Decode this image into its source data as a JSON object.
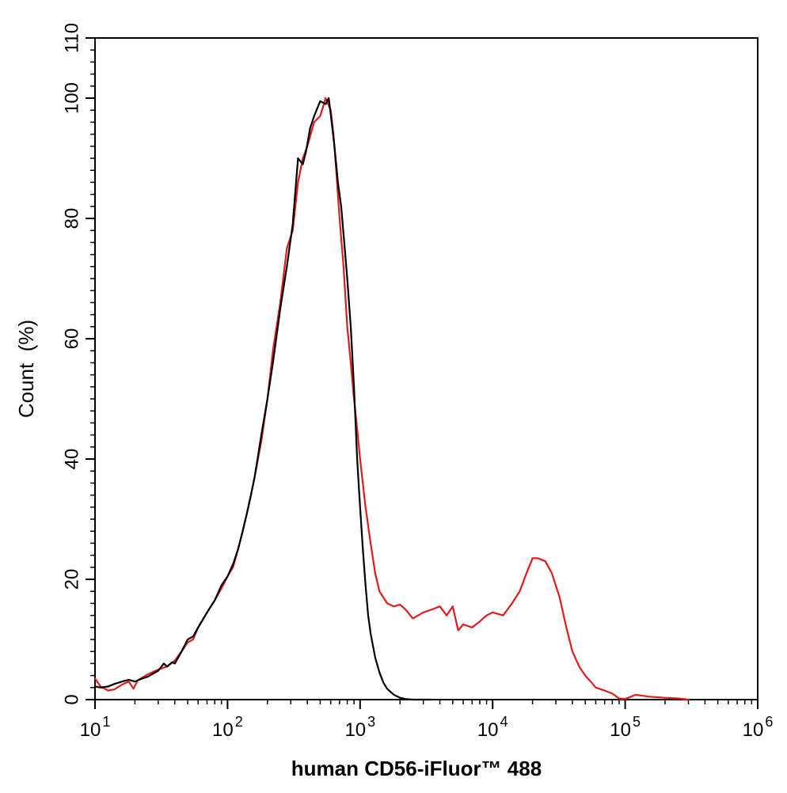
{
  "chart_data": {
    "type": "line",
    "xlabel": "human CD56-iFluor™ 488",
    "ylabel": "Count  (%)",
    "x_scale": "log",
    "xlim": [
      10,
      1000000
    ],
    "ylim": [
      0,
      110
    ],
    "y_ticks": [
      0,
      20,
      40,
      60,
      80,
      100,
      110
    ],
    "x_ticks": [
      {
        "value": 10,
        "base": "10",
        "exp": "1"
      },
      {
        "value": 100,
        "base": "10",
        "exp": "2"
      },
      {
        "value": 1000,
        "base": "10",
        "exp": "3"
      },
      {
        "value": 10000,
        "base": "10",
        "exp": "4"
      },
      {
        "value": 100000,
        "base": "10",
        "exp": "5"
      },
      {
        "value": 1000000,
        "base": "10",
        "exp": "6"
      }
    ],
    "grid": false,
    "legend": "none",
    "series": [
      {
        "color": "#e01b1b",
        "x": [
          10,
          11,
          12.6,
          14,
          16,
          18,
          19.5,
          21,
          25,
          30,
          35,
          40,
          45,
          50,
          55,
          60,
          70,
          80,
          90,
          100,
          110,
          120,
          130,
          140,
          150,
          160,
          180,
          200,
          220,
          250,
          280,
          310,
          340,
          370,
          400,
          450,
          500,
          550,
          600,
          630,
          660,
          700,
          750,
          800,
          850,
          900,
          950,
          1000,
          1100,
          1200,
          1300,
          1400,
          1600,
          1800,
          2000,
          2200,
          2500,
          3000,
          3500,
          4000,
          4500,
          5000,
          5500,
          6000,
          7000,
          8000,
          9000,
          10000,
          12000,
          14000,
          16000,
          18000,
          20000,
          22000,
          25000,
          28000,
          32000,
          36000,
          40000,
          45000,
          50000,
          55000,
          60000,
          70000,
          80000,
          90000,
          100000,
          120000,
          150000,
          200000,
          250000,
          300000
        ],
        "y": [
          3.5,
          2.2,
          1.5,
          1.7,
          2.5,
          3.0,
          1.8,
          3.2,
          4.2,
          5.0,
          5.5,
          6.5,
          8.0,
          9.5,
          10.0,
          12.0,
          14.5,
          16.5,
          18.5,
          20.5,
          22.0,
          25.0,
          28.0,
          31.0,
          34.0,
          37.0,
          43.0,
          50.0,
          58.0,
          66.0,
          75.0,
          78.0,
          86.0,
          90.0,
          92.0,
          96.0,
          97.0,
          100.0,
          98.0,
          94.0,
          88.0,
          80.0,
          72.0,
          62.0,
          56.0,
          50.0,
          45.0,
          40.0,
          32.0,
          26.0,
          21.0,
          18.0,
          16.0,
          15.5,
          15.8,
          15.0,
          13.5,
          14.5,
          15.0,
          15.5,
          14.0,
          15.5,
          11.5,
          12.5,
          12.0,
          13.0,
          14.0,
          14.5,
          14.0,
          16.0,
          18.0,
          21.0,
          23.5,
          23.5,
          23.0,
          21.0,
          17.0,
          12.0,
          8.0,
          5.5,
          4.0,
          3.0,
          2.0,
          1.5,
          1.0,
          0.2,
          0.1,
          0.8,
          0.5,
          0.3,
          0.2,
          0.0
        ]
      },
      {
        "color": "#000000",
        "x": [
          10,
          11,
          12.6,
          14,
          16,
          18,
          20,
          22,
          25,
          30,
          33,
          35,
          38,
          40,
          45,
          50,
          55,
          60,
          70,
          80,
          90,
          100,
          110,
          120,
          130,
          140,
          150,
          160,
          180,
          200,
          220,
          250,
          280,
          310,
          340,
          370,
          390,
          420,
          450,
          500,
          550,
          580,
          610,
          640,
          680,
          720,
          760,
          800,
          850,
          900,
          950,
          1000,
          1050,
          1100,
          1150,
          1200,
          1300,
          1400,
          1500,
          1600,
          1800,
          2000,
          2200,
          2500,
          3000,
          3500
        ],
        "y": [
          2.2,
          2.0,
          2.2,
          2.6,
          3.0,
          3.3,
          3.0,
          3.4,
          3.8,
          4.8,
          6.0,
          5.5,
          6.2,
          6.0,
          8.0,
          10.0,
          10.5,
          12.0,
          14.5,
          16.5,
          19.0,
          20.5,
          22.5,
          25.0,
          28.0,
          31.0,
          34.0,
          37.0,
          44.0,
          50.0,
          56.0,
          65.0,
          72.0,
          79.0,
          90.0,
          89.0,
          91.0,
          95.0,
          97.0,
          99.5,
          99.0,
          100.0,
          96.0,
          92.0,
          86.0,
          82.0,
          76.0,
          70.0,
          62.0,
          52.0,
          40.0,
          32.0,
          25.0,
          19.0,
          14.0,
          11.0,
          7.0,
          4.5,
          2.8,
          1.8,
          0.8,
          0.3,
          0.1,
          0.0,
          0.0,
          0.0
        ]
      }
    ]
  }
}
